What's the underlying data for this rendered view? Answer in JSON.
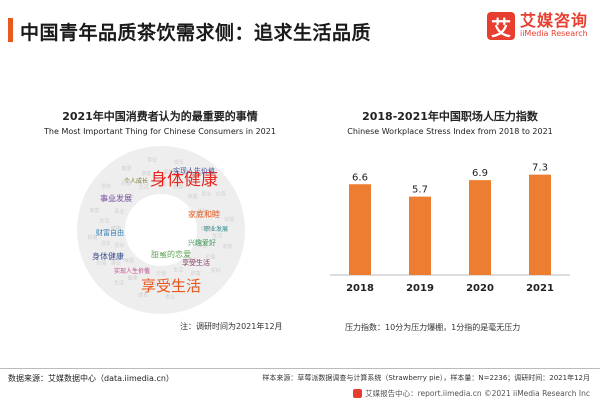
{
  "header": {
    "title": "中国青年品质茶饮需求侧：追求生活品质",
    "logo_mark": "艾",
    "logo_cn": "艾媒咨询",
    "logo_en": "iiMedia Research",
    "accent_color": "#e8591e"
  },
  "wordcloud": {
    "title": "2021年中国消费者认为的最重要的事情",
    "subtitle": "The Most Important Thing for Chinese Consumers in 2021",
    "note": "注：调研时间为2021年12月",
    "words": [
      {
        "text": "身体健康",
        "color": "#e8241c",
        "size": 17
      },
      {
        "text": "享受生活",
        "color": "#e8591e",
        "size": 15
      },
      {
        "text": "实现人生价值",
        "color": "#4a5aa0",
        "size": 7
      },
      {
        "text": "事业发展",
        "color": "#7a4fa0",
        "size": 8
      },
      {
        "text": "家庭和睦",
        "color": "#e8591e",
        "size": 8
      },
      {
        "text": "财富自由",
        "color": "#2f7fb5",
        "size": 7
      },
      {
        "text": "兴趣爱好",
        "color": "#3a9a5a",
        "size": 7
      },
      {
        "text": "甜蜜的恋爱",
        "color": "#5aa050",
        "size": 8
      },
      {
        "text": "实现人生价值",
        "color": "#c24a8a",
        "size": 6
      },
      {
        "text": "身体健康",
        "color": "#3a4f8f",
        "size": 8
      },
      {
        "text": "享受生活",
        "color": "#8a3a6a",
        "size": 7
      },
      {
        "text": "个人成长",
        "color": "#7a7a2a",
        "size": 6
      },
      {
        "text": "职业发展",
        "color": "#2a8a8a",
        "size": 6
      }
    ]
  },
  "chart_data": {
    "type": "bar",
    "title": "2018-2021年中国职场人压力指数",
    "subtitle": "Chinese Workplace Stress Index from 2018 to 2021",
    "categories": [
      "2018",
      "2019",
      "2020",
      "2021"
    ],
    "values": [
      6.6,
      5.7,
      6.9,
      7.3
    ],
    "ylim": [
      0,
      8
    ],
    "bar_color": "#ed7d31",
    "note": "压力指数：10分为压力爆棚，1分指的是毫无压力",
    "grid": false
  },
  "footer": {
    "source_left": "数据来源：艾媒数据中心（data.iimedia.cn）",
    "source_right": "样本来源：草莓派数据调查与计算系统（Strawberry pie），样本量：N=2236；调研时间：2021年12月",
    "copyright": "艾媒报告中心：report.iimedia.cn ©2021  iiMedia Research  Inc"
  }
}
